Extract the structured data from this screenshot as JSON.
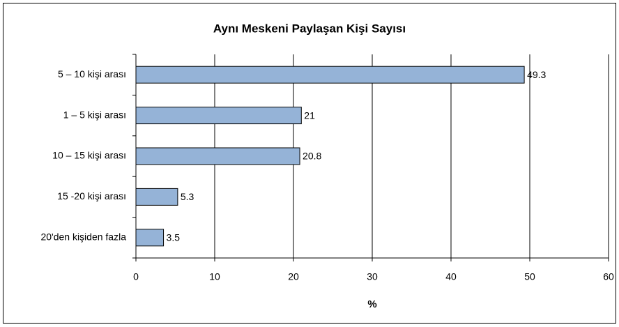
{
  "chart_data": {
    "type": "barh",
    "title": "Aynı Meskeni Paylaşan Kişi Sayısı",
    "x_label": "%",
    "categories": [
      "5 – 10 kişi arası",
      "1 – 5 kişi arası",
      "10 – 15 kişi arası",
      "15 -20 kişi arası",
      "20'den kişiden fazla"
    ],
    "values": [
      49.3,
      21,
      20.8,
      5.3,
      3.5
    ],
    "color": "#95b3d7",
    "xlim": [
      0,
      60
    ],
    "xticks": [
      0,
      10,
      20,
      30,
      40,
      50,
      60
    ],
    "grid": true
  }
}
